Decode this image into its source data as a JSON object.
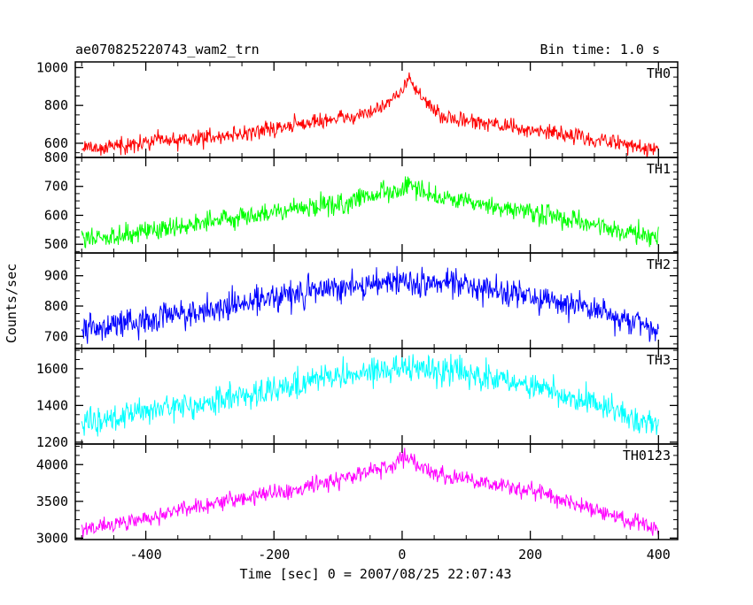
{
  "chart_data": {
    "type": "line",
    "title": "ae070825220743_wam2_trn",
    "subtitle": "Bin time: 1.0 s",
    "xlabel": "Time [sec] 0 = 2007/08/25 22:07:43",
    "ylabel": "Counts/sec",
    "xlim": [
      -510,
      430
    ],
    "xticks": [
      -400,
      -200,
      0,
      200,
      400
    ],
    "grid": false,
    "panels": [
      {
        "name": "TH0",
        "color": "#ff0000",
        "ylim": [
          525,
          1030
        ],
        "yticks": [
          600,
          800,
          1000
        ],
        "baseline": [
          [
            -500,
            570
          ],
          [
            -250,
            650
          ],
          [
            -50,
            760
          ],
          [
            0,
            870
          ],
          [
            10,
            960
          ],
          [
            20,
            880
          ],
          [
            60,
            740
          ],
          [
            200,
            670
          ],
          [
            400,
            570
          ]
        ],
        "noise": 40
      },
      {
        "name": "TH1",
        "color": "#00ff00",
        "ylim": [
          470,
          800
        ],
        "yticks": [
          500,
          600,
          700,
          800
        ],
        "baseline": [
          [
            -500,
            515
          ],
          [
            -300,
            580
          ],
          [
            -100,
            640
          ],
          [
            0,
            690
          ],
          [
            10,
            720
          ],
          [
            20,
            690
          ],
          [
            60,
            655
          ],
          [
            200,
            610
          ],
          [
            400,
            520
          ]
        ],
        "noise": 35
      },
      {
        "name": "TH2",
        "color": "#0000ff",
        "ylim": [
          660,
          975
        ],
        "yticks": [
          700,
          800,
          900
        ],
        "baseline": [
          [
            -500,
            720
          ],
          [
            -300,
            790
          ],
          [
            -100,
            865
          ],
          [
            0,
            880
          ],
          [
            100,
            870
          ],
          [
            300,
            790
          ],
          [
            400,
            720
          ]
        ],
        "noise": 45
      },
      {
        "name": "TH3",
        "color": "#00ffff",
        "ylim": [
          1190,
          1710
        ],
        "yticks": [
          1200,
          1400,
          1600
        ],
        "baseline": [
          [
            -500,
            1300
          ],
          [
            -300,
            1420
          ],
          [
            -100,
            1560
          ],
          [
            0,
            1600
          ],
          [
            100,
            1580
          ],
          [
            300,
            1420
          ],
          [
            400,
            1290
          ]
        ],
        "noise": 70
      },
      {
        "name": "TH0123",
        "color": "#ff00ff",
        "ylim": [
          2980,
          4280
        ],
        "yticks": [
          3000,
          3500,
          4000
        ],
        "baseline": [
          [
            -500,
            3100
          ],
          [
            -300,
            3450
          ],
          [
            -100,
            3800
          ],
          [
            -20,
            3970
          ],
          [
            10,
            4130
          ],
          [
            30,
            3930
          ],
          [
            60,
            3850
          ],
          [
            200,
            3650
          ],
          [
            400,
            3120
          ]
        ],
        "noise": 110
      }
    ]
  }
}
